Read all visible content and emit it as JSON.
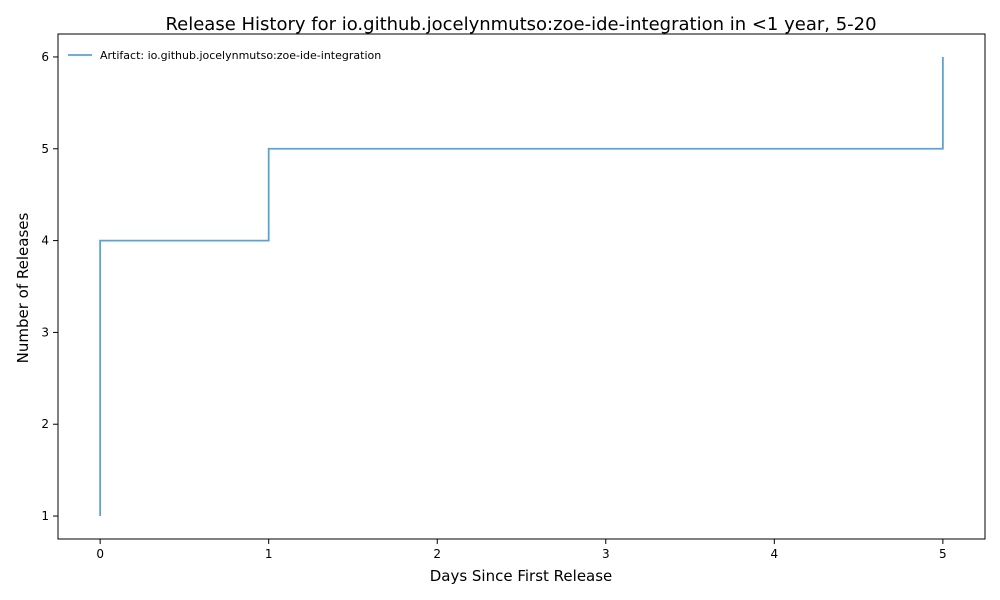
{
  "chart_data": {
    "type": "line",
    "drawstyle": "step-post",
    "title": "Release History for io.github.jocelynmutso:zoe-ide-integration in <1 year, 5-20",
    "xlabel": "Days Since First Release",
    "ylabel": "Number of Releases",
    "xlim": [
      -0.25,
      5.25
    ],
    "ylim": [
      0.75,
      6.25
    ],
    "xticks": [
      0,
      1,
      2,
      3,
      4,
      5
    ],
    "yticks": [
      1,
      2,
      3,
      4,
      5,
      6
    ],
    "grid": false,
    "legend_position": "top-left",
    "series": [
      {
        "name": "Artifact: io.github.jocelynmutso:zoe-ide-integration",
        "color": "#5ca3d1",
        "x": [
          0,
          0,
          1,
          5,
          5
        ],
        "y": [
          1,
          4,
          5,
          5,
          6
        ]
      }
    ]
  }
}
